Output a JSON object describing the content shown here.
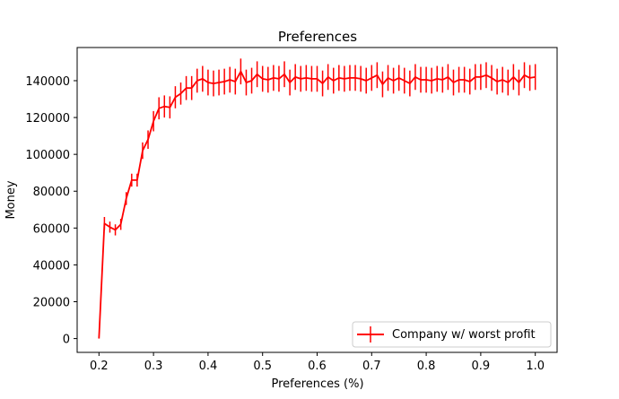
{
  "colors": {
    "series": "#ff0000",
    "axes": "#000000",
    "background": "#ffffff"
  },
  "chart_data": {
    "type": "line",
    "title": "Preferences",
    "xlabel": "Preferences (%)",
    "ylabel": "Money",
    "xlim": [
      0.16,
      1.04
    ],
    "ylim": [
      -7500,
      158000
    ],
    "grid": false,
    "legend_position": "lower right",
    "xticks": [
      0.2,
      0.3,
      0.4,
      0.5,
      0.6,
      0.7,
      0.8,
      0.9,
      1.0
    ],
    "xtick_labels": [
      "0.2",
      "0.3",
      "0.4",
      "0.5",
      "0.6",
      "0.7",
      "0.8",
      "0.9",
      "1.0"
    ],
    "yticks": [
      0,
      20000,
      40000,
      60000,
      80000,
      100000,
      120000,
      140000
    ],
    "ytick_labels": [
      "0",
      "20000",
      "40000",
      "60000",
      "80000",
      "100000",
      "120000",
      "140000"
    ],
    "series": [
      {
        "name": "Company w/ worst profit",
        "color": "#ff0000",
        "x": [
          0.2,
          0.21,
          0.22,
          0.23,
          0.24,
          0.25,
          0.26,
          0.27,
          0.28,
          0.29,
          0.3,
          0.31,
          0.32,
          0.33,
          0.34,
          0.35,
          0.36,
          0.37,
          0.38,
          0.39,
          0.4,
          0.41,
          0.42,
          0.43,
          0.44,
          0.45,
          0.46,
          0.47,
          0.48,
          0.49,
          0.5,
          0.51,
          0.52,
          0.53,
          0.54,
          0.55,
          0.56,
          0.57,
          0.58,
          0.59,
          0.6,
          0.61,
          0.62,
          0.63,
          0.64,
          0.65,
          0.66,
          0.67,
          0.68,
          0.69,
          0.7,
          0.71,
          0.72,
          0.73,
          0.74,
          0.75,
          0.76,
          0.77,
          0.78,
          0.79,
          0.8,
          0.81,
          0.82,
          0.83,
          0.84,
          0.85,
          0.86,
          0.87,
          0.88,
          0.89,
          0.9,
          0.91,
          0.92,
          0.93,
          0.94,
          0.95,
          0.96,
          0.97,
          0.98,
          0.99,
          1.0
        ],
        "y": [
          0,
          62500,
          60500,
          59000,
          62000,
          76000,
          86000,
          86000,
          102000,
          108000,
          118000,
          125000,
          126000,
          125500,
          131000,
          133000,
          136000,
          136000,
          140000,
          141000,
          139000,
          138500,
          139000,
          139500,
          140500,
          139500,
          145000,
          139000,
          140000,
          143500,
          141000,
          140500,
          141500,
          141000,
          143500,
          139000,
          142000,
          141000,
          141500,
          141000,
          141000,
          138500,
          142000,
          140000,
          141500,
          141000,
          141500,
          141500,
          141000,
          140000,
          141500,
          143000,
          138000,
          141500,
          140000,
          141500,
          140000,
          138500,
          142000,
          140500,
          140500,
          140000,
          141000,
          140500,
          142000,
          139000,
          140500,
          140500,
          139500,
          142000,
          142000,
          143000,
          141500,
          139500,
          140500,
          139000,
          142000,
          139000,
          143000,
          141500,
          142000
        ],
        "err": [
          0,
          3500,
          3000,
          3000,
          3000,
          3500,
          3500,
          3500,
          4500,
          5000,
          5500,
          6000,
          6000,
          6000,
          6000,
          6000,
          6500,
          6500,
          6500,
          7000,
          7000,
          7000,
          7000,
          7000,
          7000,
          7000,
          7000,
          7000,
          7000,
          7000,
          7000,
          7000,
          7000,
          7000,
          7000,
          7000,
          7000,
          7000,
          7000,
          7000,
          7000,
          7000,
          7000,
          7000,
          7000,
          7000,
          7000,
          7000,
          7000,
          7000,
          7000,
          7000,
          7000,
          7000,
          7000,
          7000,
          7000,
          7000,
          7000,
          7000,
          7000,
          7000,
          7000,
          7000,
          7000,
          7000,
          7000,
          7000,
          7000,
          7000,
          7000,
          7000,
          7000,
          7000,
          7000,
          7000,
          7000,
          7000,
          7000,
          7000,
          7000
        ]
      }
    ]
  }
}
